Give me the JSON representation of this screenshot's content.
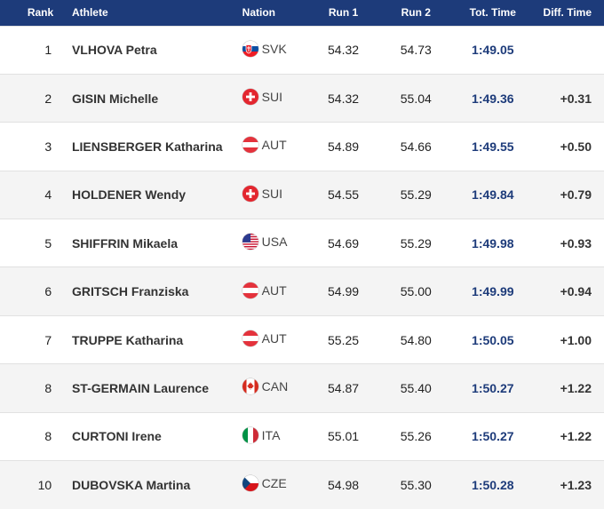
{
  "header": {
    "rank": "Rank",
    "athlete": "Athlete",
    "nation": "Nation",
    "run1": "Run 1",
    "run2": "Run 2",
    "total": "Tot. Time",
    "diff": "Diff. Time"
  },
  "colors": {
    "header_bg": "#1d3b7a",
    "header_text": "#ffffff",
    "total_time_text": "#1d3b7a",
    "row_alt_bg": "#f4f4f4"
  },
  "rows": [
    {
      "rank": "1",
      "athlete": "VLHOVA Petra",
      "nation": "SVK",
      "flag_icon": "slovakia-flag-icon",
      "run1": "54.32",
      "run2": "54.73",
      "total": "1:49.05",
      "diff": ""
    },
    {
      "rank": "2",
      "athlete": "GISIN Michelle",
      "nation": "SUI",
      "flag_icon": "switzerland-flag-icon",
      "run1": "54.32",
      "run2": "55.04",
      "total": "1:49.36",
      "diff": "+0.31"
    },
    {
      "rank": "3",
      "athlete": "LIENSBERGER Katharina",
      "nation": "AUT",
      "flag_icon": "austria-flag-icon",
      "run1": "54.89",
      "run2": "54.66",
      "total": "1:49.55",
      "diff": "+0.50"
    },
    {
      "rank": "4",
      "athlete": "HOLDENER Wendy",
      "nation": "SUI",
      "flag_icon": "switzerland-flag-icon",
      "run1": "54.55",
      "run2": "55.29",
      "total": "1:49.84",
      "diff": "+0.79"
    },
    {
      "rank": "5",
      "athlete": "SHIFFRIN Mikaela",
      "nation": "USA",
      "flag_icon": "usa-flag-icon",
      "run1": "54.69",
      "run2": "55.29",
      "total": "1:49.98",
      "diff": "+0.93"
    },
    {
      "rank": "6",
      "athlete": "GRITSCH Franziska",
      "nation": "AUT",
      "flag_icon": "austria-flag-icon",
      "run1": "54.99",
      "run2": "55.00",
      "total": "1:49.99",
      "diff": "+0.94"
    },
    {
      "rank": "7",
      "athlete": "TRUPPE Katharina",
      "nation": "AUT",
      "flag_icon": "austria-flag-icon",
      "run1": "55.25",
      "run2": "54.80",
      "total": "1:50.05",
      "diff": "+1.00"
    },
    {
      "rank": "8",
      "athlete": "ST-GERMAIN Laurence",
      "nation": "CAN",
      "flag_icon": "canada-flag-icon",
      "run1": "54.87",
      "run2": "55.40",
      "total": "1:50.27",
      "diff": "+1.22"
    },
    {
      "rank": "8",
      "athlete": "CURTONI Irene",
      "nation": "ITA",
      "flag_icon": "italy-flag-icon",
      "run1": "55.01",
      "run2": "55.26",
      "total": "1:50.27",
      "diff": "+1.22"
    },
    {
      "rank": "10",
      "athlete": "DUBOVSKA Martina",
      "nation": "CZE",
      "flag_icon": "czechia-flag-icon",
      "run1": "54.98",
      "run2": "55.30",
      "total": "1:50.28",
      "diff": "+1.23"
    }
  ]
}
